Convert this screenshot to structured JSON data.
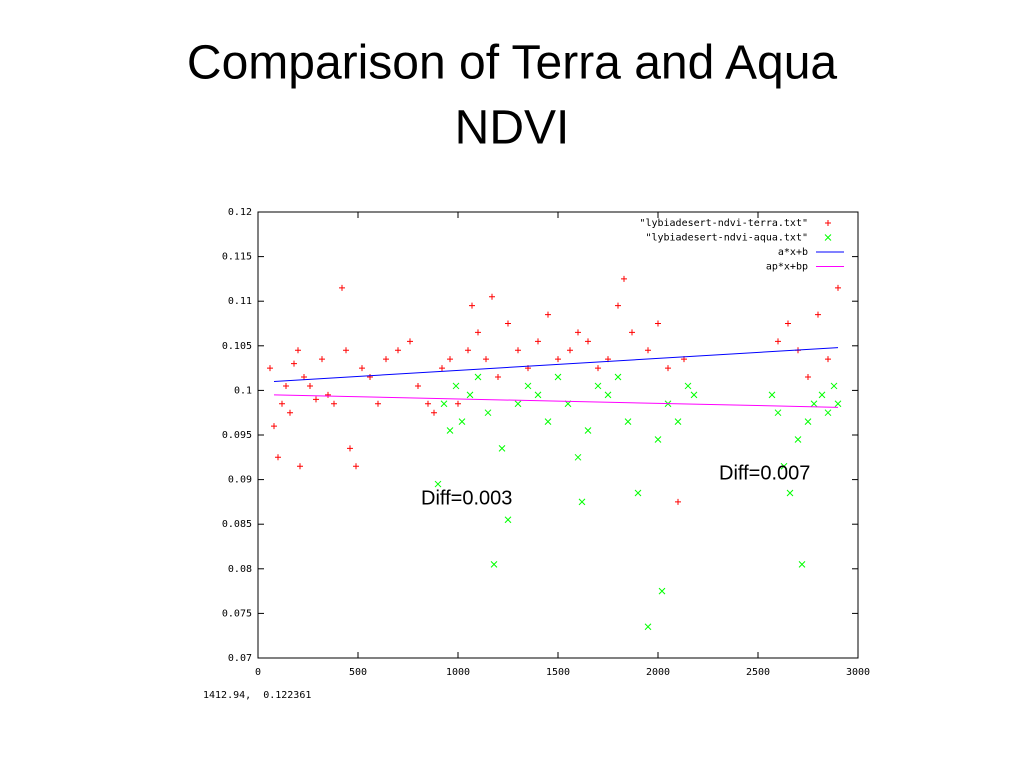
{
  "chart_data": {
    "type": "scatter",
    "title_lines": [
      "Comparison of Terra and Aqua",
      "NDVI"
    ],
    "annotations": [
      "Diff=0.003",
      "Diff=0.007"
    ],
    "status": "1412.94,  0.122361",
    "xlim": [
      0,
      3000
    ],
    "xticks": [
      0,
      500,
      1000,
      1500,
      2000,
      2500,
      3000
    ],
    "ylim": [
      0.07,
      0.12
    ],
    "yticks": [
      0.07,
      0.075,
      0.08,
      0.085,
      0.09,
      0.095,
      0.1,
      0.105,
      0.11,
      0.115,
      0.12
    ],
    "grid": false,
    "legend": "upper right",
    "series": [
      {
        "name": "\"lybiadesert-ndvi-terra.txt\"",
        "color": "#ff0000",
        "marker": "plus",
        "x": [
          60,
          80,
          100,
          120,
          140,
          160,
          180,
          200,
          210,
          230,
          260,
          290,
          320,
          350,
          380,
          420,
          440,
          460,
          490,
          520,
          560,
          600,
          640,
          700,
          760,
          800,
          850,
          880,
          920,
          960,
          1000,
          1050,
          1070,
          1100,
          1140,
          1170,
          1200,
          1250,
          1300,
          1350,
          1400,
          1450,
          1500,
          1560,
          1600,
          1650,
          1700,
          1750,
          1800,
          1830,
          1870,
          1950,
          2000,
          2050,
          2100,
          2130,
          2600,
          2650,
          2700,
          2750,
          2800,
          2850,
          2900
        ],
        "values": [
          0.1025,
          0.096,
          0.0925,
          0.0985,
          0.1005,
          0.0975,
          0.103,
          0.1045,
          0.0915,
          0.1015,
          0.1005,
          0.099,
          0.1035,
          0.0995,
          0.0985,
          0.1115,
          0.1045,
          0.0935,
          0.0915,
          0.1025,
          0.1015,
          0.0985,
          0.1035,
          0.1045,
          0.1055,
          0.1005,
          0.0985,
          0.0975,
          0.1025,
          0.1035,
          0.0985,
          0.1045,
          0.1095,
          0.1065,
          0.1035,
          0.1105,
          0.1015,
          0.1075,
          0.1045,
          0.1025,
          0.1055,
          0.1085,
          0.1035,
          0.1045,
          0.1065,
          0.1055,
          0.1025,
          0.1035,
          0.1095,
          0.1125,
          0.1065,
          0.1045,
          0.1075,
          0.1025,
          0.0875,
          0.1035,
          0.1055,
          0.1075,
          0.1045,
          0.1015,
          0.1085,
          0.1035,
          0.1115
        ]
      },
      {
        "name": "\"lybiadesert-ndvi-aqua.txt\"",
        "color": "#00ff00",
        "marker": "cross",
        "x": [
          900,
          930,
          960,
          990,
          1020,
          1060,
          1100,
          1150,
          1180,
          1220,
          1250,
          1300,
          1350,
          1400,
          1450,
          1500,
          1550,
          1600,
          1620,
          1650,
          1700,
          1750,
          1800,
          1850,
          1900,
          1950,
          2000,
          2020,
          2050,
          2100,
          2150,
          2180,
          2570,
          2600,
          2630,
          2660,
          2700,
          2720,
          2750,
          2780,
          2820,
          2850,
          2880,
          2900
        ],
        "values": [
          0.0895,
          0.0985,
          0.0955,
          0.1005,
          0.0965,
          0.0995,
          0.1015,
          0.0975,
          0.0805,
          0.0935,
          0.0855,
          0.0985,
          0.1005,
          0.0995,
          0.0965,
          0.1015,
          0.0985,
          0.0925,
          0.0875,
          0.0955,
          0.1005,
          0.0995,
          0.1015,
          0.0965,
          0.0885,
          0.0735,
          0.0945,
          0.0775,
          0.0985,
          0.0965,
          0.1005,
          0.0995,
          0.0995,
          0.0975,
          0.0915,
          0.0885,
          0.0945,
          0.0805,
          0.0965,
          0.0985,
          0.0995,
          0.0975,
          0.1005,
          0.0985
        ]
      },
      {
        "name": "a*x+b",
        "color": "#0000ff",
        "marker": "line",
        "x": [
          80,
          2900
        ],
        "values": [
          0.101,
          0.1048
        ]
      },
      {
        "name": "ap*x+bp",
        "color": "#ff00ff",
        "marker": "line",
        "x": [
          80,
          2900
        ],
        "values": [
          0.0995,
          0.0981
        ]
      }
    ]
  }
}
